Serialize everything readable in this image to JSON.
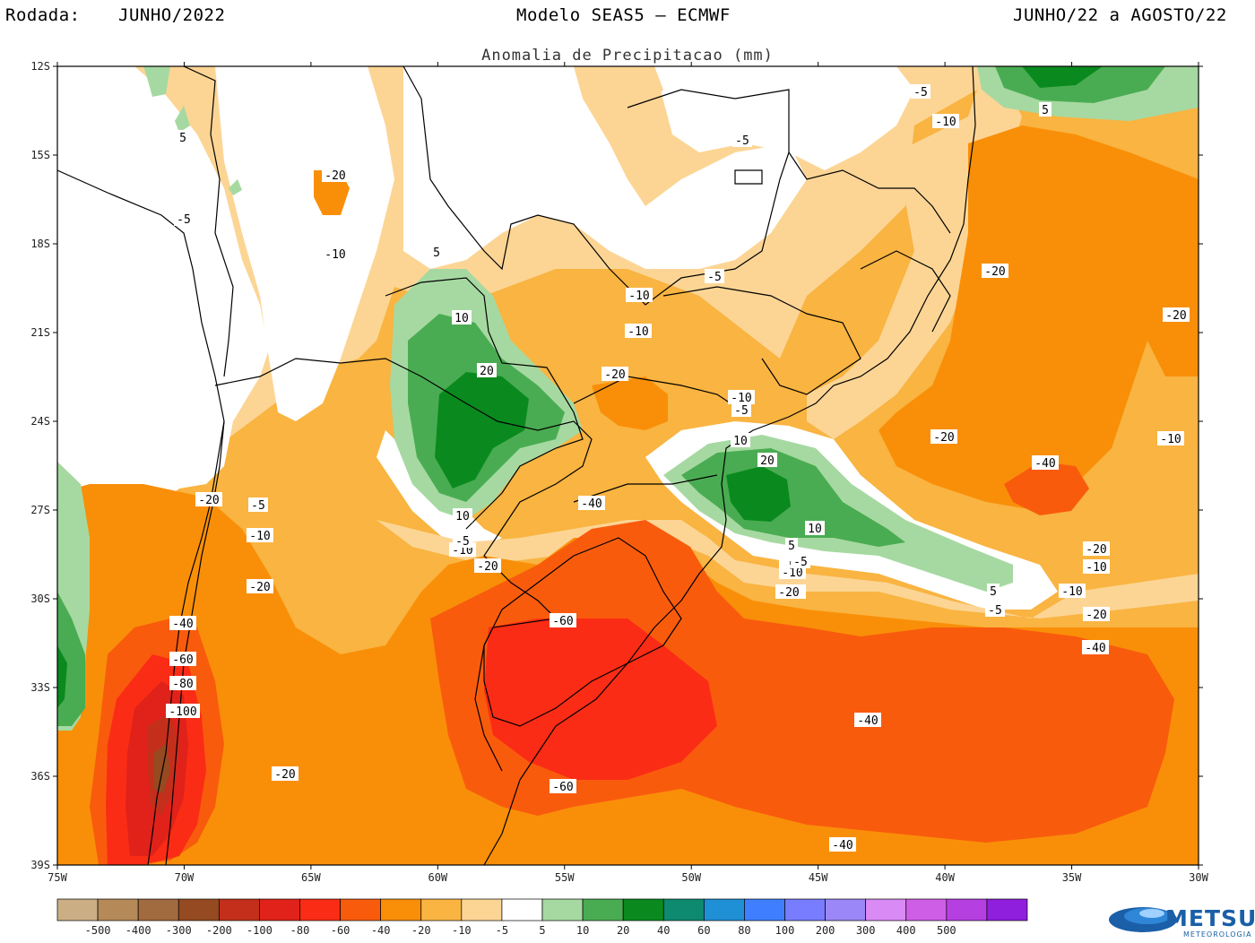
{
  "header": {
    "run_label": "Rodada:",
    "run_value": "JUNHO/2022",
    "model": "Modelo SEAS5 – ECMWF",
    "period": "JUNHO/22 a AGOSTO/22",
    "subtitle": "Anomalia de Precipitacao (mm)"
  },
  "axes": {
    "lat_labels": [
      "12S",
      "15S",
      "18S",
      "21S",
      "24S",
      "27S",
      "30S",
      "33S",
      "36S",
      "39S"
    ],
    "lon_labels": [
      "75W",
      "70W",
      "65W",
      "60W",
      "55W",
      "50W",
      "45W",
      "40W",
      "35W",
      "30W"
    ]
  },
  "colorbar": {
    "colors": [
      "#cbae84",
      "#b58958",
      "#a26a3f",
      "#954a21",
      "#c42f1b",
      "#e0221a",
      "#fb2c15",
      "#f95b0d",
      "#f98f08",
      "#f9b441",
      "#fcd595",
      "#ffffff",
      "#a6d9a1",
      "#4aac52",
      "#0a8a1e",
      "#0d8a70",
      "#1f8fd6",
      "#3f7fff",
      "#787cff",
      "#9b87f7",
      "#d98af5",
      "#cf5ee6",
      "#b63fe2",
      "#8f1edd"
    ],
    "labels": [
      "-500",
      "-400",
      "-300",
      "-200",
      "-100",
      "-80",
      "-60",
      "-40",
      "-20",
      "-10",
      "-5",
      "5",
      "10",
      "20",
      "40",
      "60",
      "80",
      "100",
      "200",
      "300",
      "400",
      "500"
    ]
  },
  "contour_labels": [
    "-5",
    "-10",
    "-20",
    "-40",
    "-60",
    "-80",
    "-100",
    "5",
    "10",
    "20"
  ],
  "contour_label_list": [
    {
      "text": "5"
    },
    {
      "text": "-20"
    },
    {
      "text": "-10"
    },
    {
      "text": "-5"
    },
    {
      "text": "5"
    },
    {
      "text": "10"
    },
    {
      "text": "20"
    },
    {
      "text": "-5"
    },
    {
      "text": "-10"
    },
    {
      "text": "-5"
    },
    {
      "text": "-10"
    },
    {
      "text": "10"
    },
    {
      "text": "5"
    },
    {
      "text": "-5"
    },
    {
      "text": "-5"
    },
    {
      "text": "-10"
    },
    {
      "text": "-20"
    },
    {
      "text": "-10"
    },
    {
      "text": "-5"
    },
    {
      "text": "10"
    },
    {
      "text": "20"
    },
    {
      "text": "-20"
    },
    {
      "text": "-20"
    },
    {
      "text": "-20"
    },
    {
      "text": "-40"
    },
    {
      "text": "-10"
    },
    {
      "text": "-20"
    },
    {
      "text": "-10"
    },
    {
      "text": "-10"
    },
    {
      "text": "-20"
    },
    {
      "text": "-40"
    },
    {
      "text": "-20"
    },
    {
      "text": "-5"
    },
    {
      "text": "-10"
    },
    {
      "text": "-20"
    },
    {
      "text": "-40"
    },
    {
      "text": "-60"
    },
    {
      "text": "-60"
    },
    {
      "text": "-40"
    },
    {
      "text": "-40"
    },
    {
      "text": "-20"
    },
    {
      "text": "-20"
    },
    {
      "text": "-40"
    },
    {
      "text": "-60"
    },
    {
      "text": "-80"
    },
    {
      "text": "-100"
    },
    {
      "text": "-20"
    },
    {
      "text": "10"
    },
    {
      "text": "5"
    },
    {
      "text": "-10"
    },
    {
      "text": "-5"
    },
    {
      "text": "-5"
    },
    {
      "text": "5"
    },
    {
      "text": "-10"
    },
    {
      "text": "-5"
    },
    {
      "text": "-20"
    }
  ],
  "logo": {
    "name": "METSUL",
    "sub": "METEOROLOGIA"
  }
}
